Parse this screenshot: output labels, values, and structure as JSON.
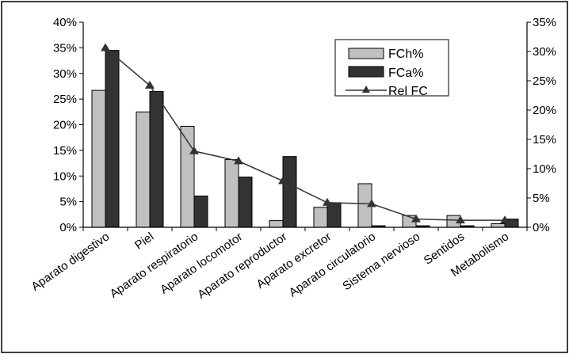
{
  "chart_data": {
    "type": "bar",
    "categories": [
      "Aparato digestivo",
      "Piel",
      "Aparato respiratorio",
      "Aparato locomotor",
      "Aparato reproductor",
      "Aparato excretor",
      "Aparato circulatorio",
      "Sistema nervioso",
      "Sentidos",
      "Metabolismo"
    ],
    "series": [
      {
        "name": "FCh%",
        "kind": "bar",
        "axis": "left",
        "color": "#c0c0c0",
        "values": [
          0.267,
          0.225,
          0.197,
          0.132,
          0.013,
          0.039,
          0.085,
          0.023,
          0.023,
          0.007
        ]
      },
      {
        "name": "FCa%",
        "kind": "bar",
        "axis": "left",
        "color": "#333333",
        "values": [
          0.345,
          0.265,
          0.061,
          0.098,
          0.138,
          0.048,
          0.003,
          0.003,
          0.003,
          0.016
        ]
      },
      {
        "name": "Rel FC",
        "kind": "line",
        "axis": "right",
        "marker": "triangle",
        "color": "#333333",
        "values": [
          0.306,
          0.242,
          0.13,
          0.113,
          0.079,
          0.042,
          0.04,
          0.014,
          0.012,
          0.012
        ]
      }
    ],
    "y_left": {
      "min": 0,
      "max": 0.4,
      "step": 0.05,
      "tick_labels": [
        "0%",
        "5%",
        "10%",
        "15%",
        "20%",
        "25%",
        "30%",
        "35%",
        "40%"
      ]
    },
    "y_right": {
      "min": 0,
      "max": 0.35,
      "step": 0.05,
      "tick_labels": [
        "0%",
        "5%",
        "10%",
        "15%",
        "20%",
        "25%",
        "30%",
        "35%"
      ]
    },
    "grid": false,
    "legend_position": "top-right",
    "title": "",
    "xlabel": "",
    "ylabel": ""
  }
}
